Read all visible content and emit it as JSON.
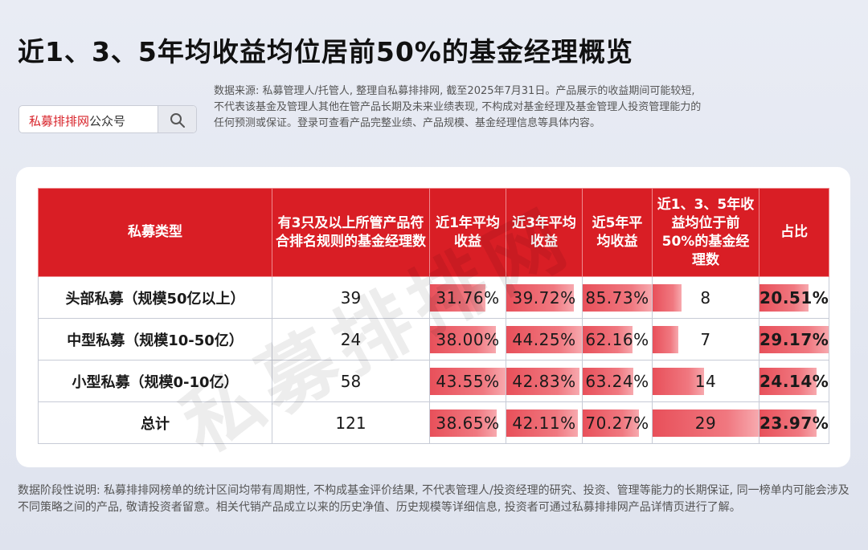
{
  "title": "近1、3、5年均收益均位居前50%的基金经理概览",
  "search": {
    "brand": "私募排排网",
    "suffix": "公众号",
    "icon": "search-icon"
  },
  "source_note": "数据来源: 私募管理人/托管人, 整理自私募排排网, 截至2025年7月31日。产品展示的收益期间可能较短, 不代表该基金及管理人其他在管产品长期及未来业绩表现, 不构成对基金经理及基金管理人投资管理能力的任何预测或保证。登录可查看产品完整业绩、产品规模、基金经理信息等具体内容。",
  "watermark": "私募排排网",
  "table": {
    "headers": [
      "私募类型",
      "有3只及以上所管产品符合排名规则的基金经理数",
      "近1年平均收益",
      "近3年平均收益",
      "近5年平均收益",
      "近1、3、5年收益均位于前50%的基金经理数",
      "占比"
    ],
    "rows": [
      {
        "type": "头部私募（规模50亿以上）",
        "count": "39",
        "r1": "31.76%",
        "r3": "39.72%",
        "r5": "85.73%",
        "top": "8",
        "share": "20.51%"
      },
      {
        "type": "中型私募（规模10-50亿）",
        "count": "24",
        "r1": "38.00%",
        "r3": "44.25%",
        "r5": "62.16%",
        "top": "7",
        "share": "29.17%"
      },
      {
        "type": "小型私募（规模0-10亿）",
        "count": "58",
        "r1": "43.55%",
        "r3": "42.83%",
        "r5": "63.24%",
        "top": "14",
        "share": "24.14%"
      },
      {
        "type": "总计",
        "count": "121",
        "r1": "38.65%",
        "r3": "42.11%",
        "r5": "70.27%",
        "top": "29",
        "share": "23.97%"
      }
    ]
  },
  "footer_note": "数据阶段性说明: 私募排排网榜单的统计区间均带有周期性, 不构成基金评价结果, 不代表管理人/投资经理的研究、投资、管理等能力的长期保证, 同一榜单内可能会涉及不同策略之间的产品, 敬请投资者留意。相关代销产品成立以来的历史净值、历史规模等详细信息, 投资者可通过私募排排网产品详情页进行了解。"
}
